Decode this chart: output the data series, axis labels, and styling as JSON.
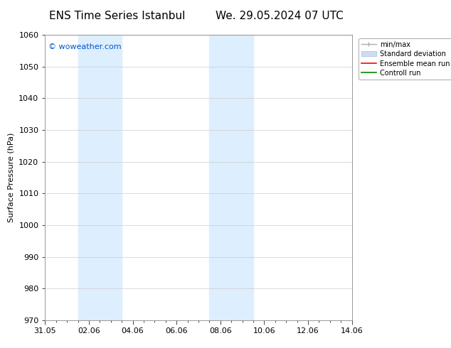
{
  "title_left": "ENS Time Series Istanbul",
  "title_right": "We. 29.05.2024 07 UTC",
  "ylabel": "Surface Pressure (hPa)",
  "ylim": [
    970,
    1060
  ],
  "yticks": [
    970,
    980,
    990,
    1000,
    1010,
    1020,
    1030,
    1040,
    1050,
    1060
  ],
  "xlabel_ticks": [
    "31.05",
    "02.06",
    "04.06",
    "06.06",
    "08.06",
    "10.06",
    "12.06",
    "14.06"
  ],
  "xtick_positions": [
    0,
    2,
    4,
    6,
    8,
    10,
    12,
    14
  ],
  "watermark": "© woweather.com",
  "watermark_color": "#0055cc",
  "bg_color": "#ffffff",
  "plot_bg_color": "#ffffff",
  "shade_color": "#ddeeff",
  "shade_regions": [
    {
      "xstart": 1.5,
      "xend": 3.5
    },
    {
      "xstart": 7.5,
      "xend": 9.5
    }
  ],
  "legend_labels": [
    "min/max",
    "Standard deviation",
    "Ensemble mean run",
    "Controll run"
  ],
  "legend_colors": [
    "#aaaaaa",
    "#c8dff0",
    "#ff0000",
    "#008800"
  ],
  "font_family": "DejaVu Sans",
  "title_fontsize": 11,
  "axis_fontsize": 8,
  "tick_fontsize": 8,
  "ylabel_fontsize": 8,
  "watermark_fontsize": 8,
  "legend_fontsize": 7,
  "xlim": [
    0,
    14
  ]
}
